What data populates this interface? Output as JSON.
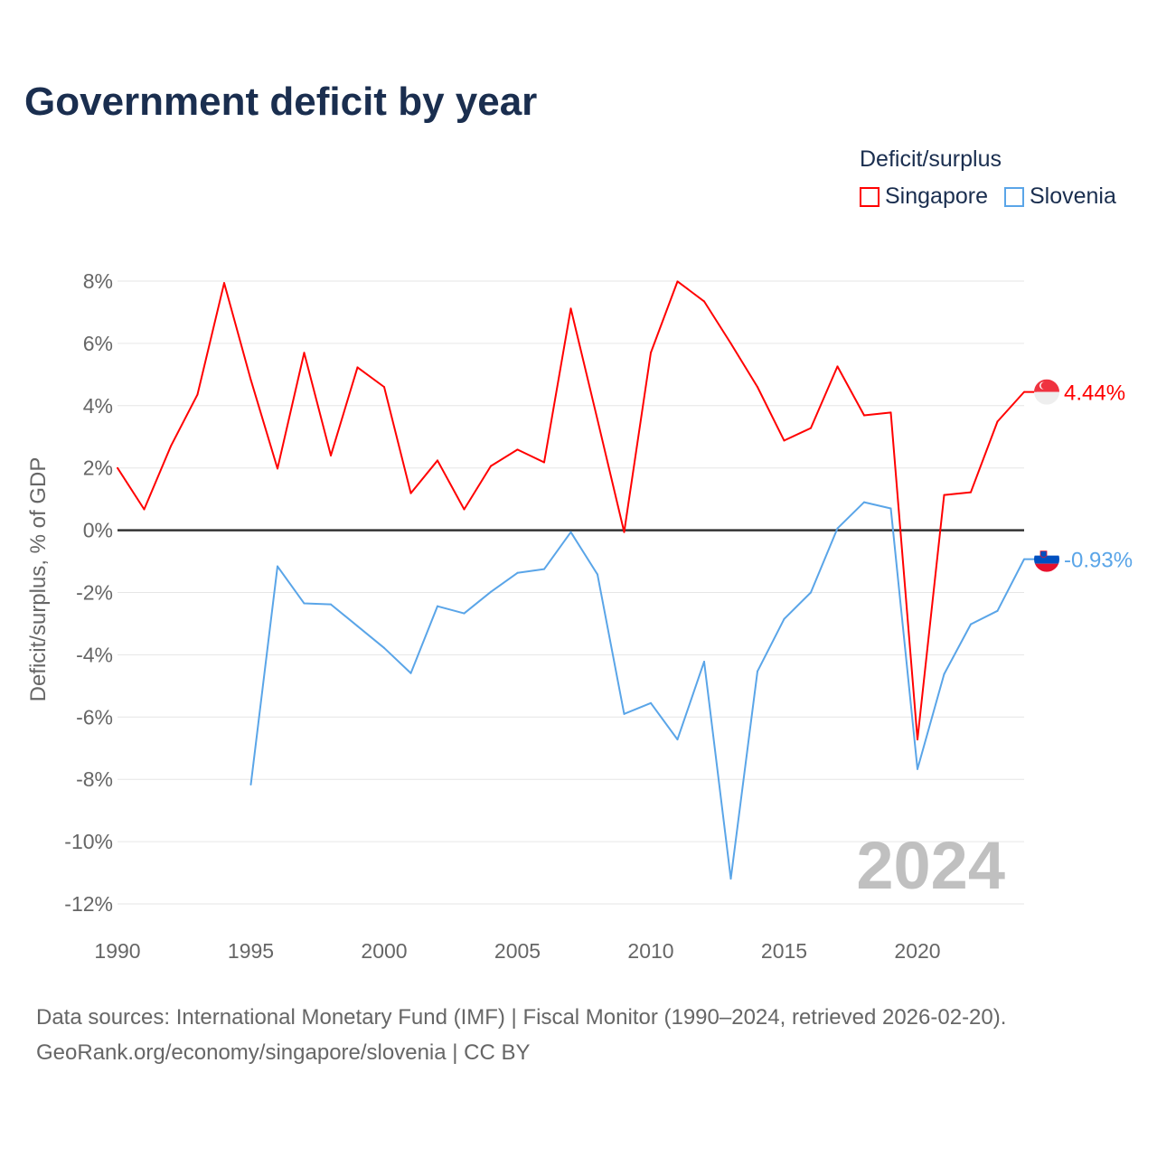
{
  "title": "Government deficit by year",
  "legend": {
    "title": "Deficit/surplus",
    "items": [
      {
        "name": "Singapore",
        "color": "#ff0000"
      },
      {
        "name": "Slovenia",
        "color": "#5aa5e8"
      }
    ]
  },
  "watermark_year": "2024",
  "footer": {
    "line1": "Data sources: International Monetary Fund (IMF) | Fiscal Monitor (1990–2024, retrieved 2026-02-20).",
    "line2": "GeoRank.org/economy/singapore/slovenia | CC BY"
  },
  "chart_data": {
    "type": "line",
    "title": "Government deficit by year",
    "xlabel": "",
    "ylabel": "Deficit/surplus, % of GDP",
    "xlim": [
      1990,
      2024
    ],
    "ylim": [
      -12,
      8
    ],
    "xticks": [
      1990,
      1995,
      2000,
      2005,
      2010,
      2015,
      2020
    ],
    "xtick_labels": [
      "1990",
      "1995",
      "2000",
      "2005",
      "2010",
      "2015",
      "2020"
    ],
    "yticks": [
      8,
      6,
      4,
      2,
      0,
      -2,
      -4,
      -6,
      -8,
      -10,
      -12
    ],
    "ytick_labels": [
      "8%",
      "6%",
      "4%",
      "2%",
      "0%",
      "-2%",
      "-4%",
      "-6%",
      "-8%",
      "-10%",
      "-12%"
    ],
    "grid": true,
    "legend_position": "top-right",
    "series": [
      {
        "name": "Singapore",
        "color": "#ff0000",
        "end_label": "4.44%",
        "x": [
          1990,
          1991,
          1992,
          1993,
          1994,
          1995,
          1996,
          1997,
          1998,
          1999,
          2000,
          2001,
          2002,
          2003,
          2004,
          2005,
          2006,
          2007,
          2008,
          2009,
          2010,
          2011,
          2012,
          2013,
          2014,
          2015,
          2016,
          2017,
          2018,
          2019,
          2020,
          2021,
          2022,
          2023,
          2024
        ],
        "values": [
          2.0,
          0.67,
          2.7,
          4.36,
          7.94,
          4.83,
          1.98,
          5.7,
          2.4,
          5.23,
          4.6,
          1.19,
          2.24,
          0.67,
          2.06,
          2.59,
          2.18,
          7.12,
          3.55,
          -0.06,
          5.7,
          7.99,
          7.35,
          6.0,
          4.6,
          2.88,
          3.28,
          5.26,
          3.69,
          3.78,
          -6.72,
          1.13,
          1.22,
          3.49,
          4.44
        ]
      },
      {
        "name": "Slovenia",
        "color": "#5aa5e8",
        "end_label": "-0.93%",
        "x": [
          1995,
          1996,
          1997,
          1998,
          1999,
          2000,
          2001,
          2002,
          2003,
          2004,
          2005,
          2006,
          2007,
          2008,
          2009,
          2010,
          2011,
          2012,
          2013,
          2014,
          2015,
          2016,
          2017,
          2018,
          2019,
          2020,
          2021,
          2022,
          2023,
          2024
        ],
        "values": [
          -8.17,
          -1.16,
          -2.35,
          -2.38,
          -3.08,
          -3.78,
          -4.59,
          -2.44,
          -2.67,
          -1.98,
          -1.37,
          -1.25,
          -0.06,
          -1.42,
          -5.9,
          -5.55,
          -6.72,
          -4.22,
          -11.19,
          -4.53,
          -2.85,
          -2.0,
          0.06,
          0.9,
          0.7,
          -7.67,
          -4.62,
          -3.02,
          -2.59,
          -0.93
        ]
      }
    ]
  }
}
